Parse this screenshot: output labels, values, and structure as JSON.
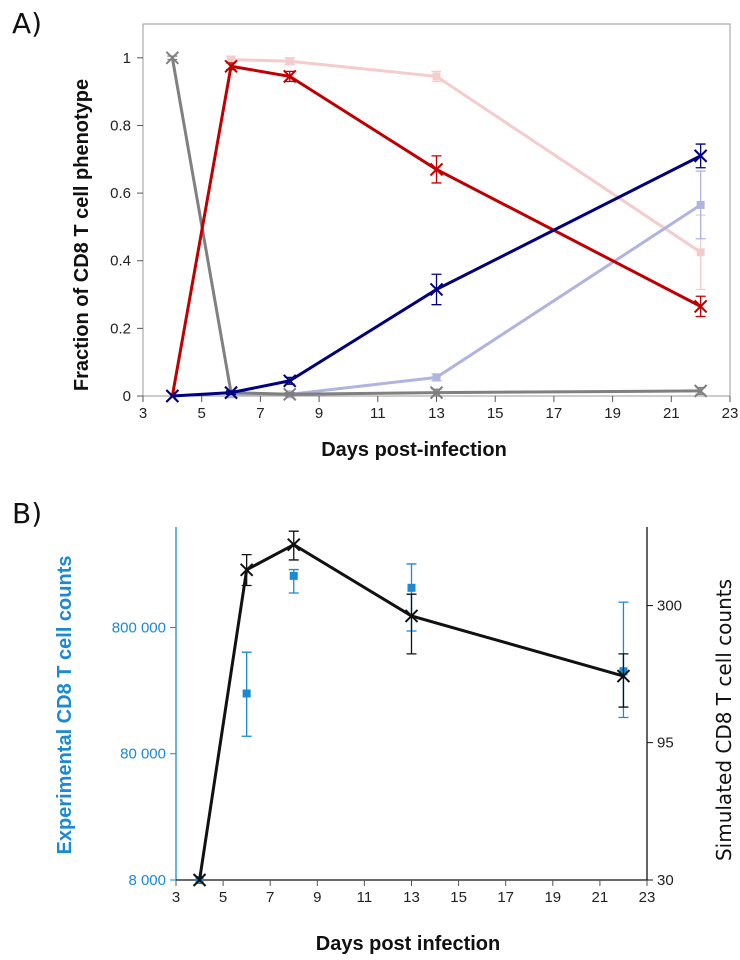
{
  "colors": {
    "red": "#c00000",
    "red_light": "#f5cccc",
    "navy": "#000080",
    "navy_light": "#b0b4e0",
    "grey": "#808080",
    "blue_exp": "#1a8ad4",
    "black": "#111111"
  },
  "chart_data": [
    {
      "type": "line",
      "panel_label": "A)",
      "xlabel": "Days post-infection",
      "ylabel": "Fraction of CD8 T cell phenotype",
      "xlim": [
        3,
        23
      ],
      "ylim": [
        0,
        1.1
      ],
      "xticks": [
        3,
        5,
        7,
        9,
        11,
        13,
        15,
        17,
        19,
        21,
        23
      ],
      "yticks": [
        0,
        0.2,
        0.4,
        0.6,
        0.8,
        1
      ],
      "ytick_labels": [
        "0",
        "0.2",
        "0.4",
        "0.6",
        "0.8",
        "1"
      ],
      "grid": false,
      "series": [
        {
          "color": "red_light",
          "marker": "square",
          "x": [
            6,
            8,
            13,
            22
          ],
          "y": [
            0.995,
            0.99,
            0.945,
            0.425
          ],
          "err": [
            0.01,
            0.01,
            0.015,
            0.11
          ]
        },
        {
          "color": "navy_light",
          "marker": "square",
          "x": [
            6,
            8,
            13,
            22
          ],
          "y": [
            0.005,
            0.005,
            0.055,
            0.565
          ],
          "err": [
            0.005,
            0.005,
            0.01,
            0.1
          ]
        },
        {
          "color": "grey",
          "marker": "x",
          "x": [
            4,
            6,
            8,
            13,
            22
          ],
          "y": [
            1.0,
            0.01,
            0.005,
            0.01,
            0.015
          ],
          "err": [
            0.005,
            0.005,
            0.005,
            0.01,
            0.01
          ]
        },
        {
          "color": "red",
          "marker": "x",
          "x": [
            4,
            6,
            8,
            13,
            22
          ],
          "y": [
            0,
            0.975,
            0.945,
            0.67,
            0.265
          ],
          "err": [
            0,
            0.01,
            0.015,
            0.04,
            0.03
          ]
        },
        {
          "color": "navy",
          "marker": "x",
          "x": [
            4,
            6,
            8,
            13,
            22
          ],
          "y": [
            0,
            0.01,
            0.045,
            0.315,
            0.71
          ],
          "err": [
            0,
            0.005,
            0.01,
            0.045,
            0.035
          ]
        }
      ]
    },
    {
      "type": "line",
      "panel_label": "B)",
      "xlabel": "Days post infection",
      "ylabel": "Experimental CD8 T cell counts",
      "ylabel_right": "Simulated CD8 T cell counts",
      "xlim": [
        3,
        23
      ],
      "xticks": [
        3,
        5,
        7,
        9,
        11,
        13,
        15,
        17,
        19,
        21,
        23
      ],
      "y_scale": "log",
      "ylim": [
        8000,
        5000000
      ],
      "yticks": [
        8000,
        80000,
        800000
      ],
      "ytick_labels": [
        "8 000",
        "80 000",
        "800 000"
      ],
      "y2_scale": "log",
      "y2lim": [
        30,
        580
      ],
      "y2ticks": [
        30,
        95,
        300
      ],
      "y2tick_labels": [
        "30",
        "95",
        "300"
      ],
      "grid": false,
      "series": [
        {
          "color": "blue_exp",
          "marker": "square",
          "axis": "left",
          "x": [
            4,
            6,
            8,
            13,
            22
          ],
          "y": [
            8000,
            240000,
            2050000,
            1650000,
            360000
          ],
          "err_lo": [
            0,
            110000,
            1500000,
            750000,
            155000
          ],
          "err_hi": [
            0,
            510000,
            2300000,
            2550000,
            1270000
          ]
        },
        {
          "color": "black",
          "marker": "x",
          "axis": "right",
          "x": [
            4,
            6,
            8,
            13,
            22
          ],
          "y": [
            30,
            405,
            500,
            275,
            166
          ],
          "err_lo": [
            30,
            355,
            440,
            200,
            128
          ],
          "err_hi": [
            30,
            460,
            560,
            330,
            200
          ]
        }
      ]
    }
  ]
}
